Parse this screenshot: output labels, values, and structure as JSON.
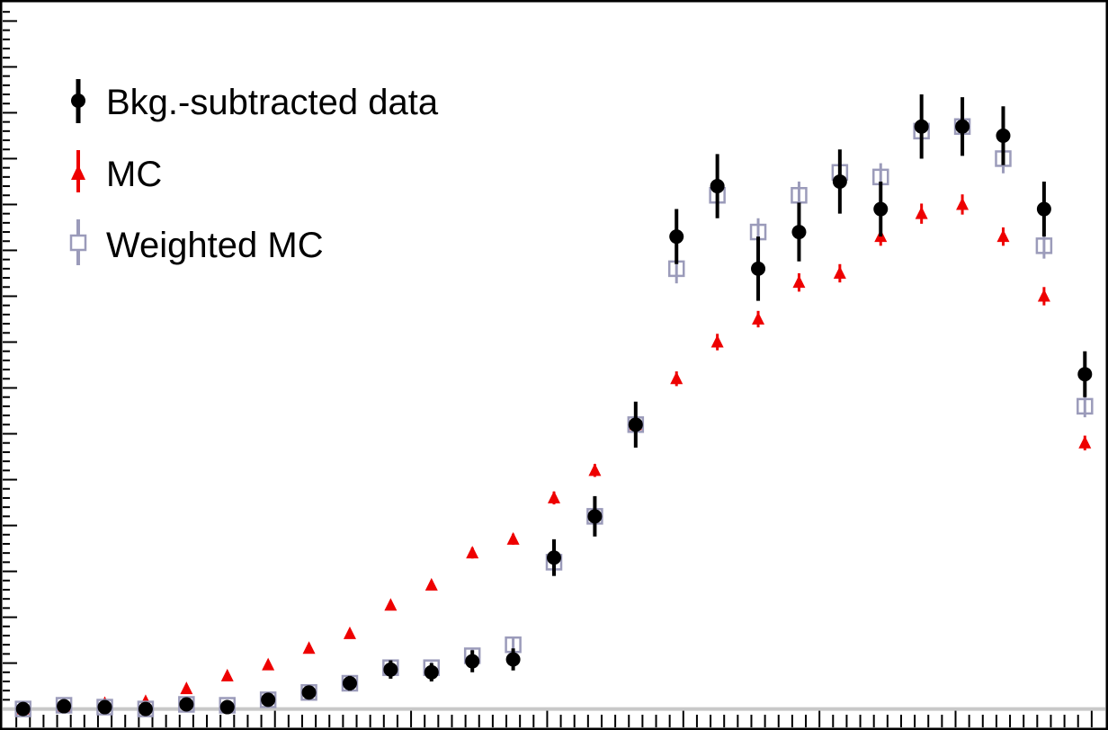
{
  "chart_data": {
    "type": "scatter",
    "title": "",
    "xlabel": "",
    "ylabel": "",
    "x": [
      1,
      2,
      3,
      4,
      5,
      6,
      7,
      8,
      9,
      10,
      11,
      12,
      13,
      14,
      15,
      16,
      17,
      18,
      19,
      20,
      21,
      22,
      23,
      24,
      25,
      26,
      27
    ],
    "xlim": [
      0.5,
      27.5
    ],
    "ylim": [
      -0.2,
      7.7
    ],
    "grid": false,
    "legend_position": "top-left",
    "series": [
      {
        "name": "Bkg.-subtracted data",
        "color": "#000000",
        "marker": "filled-circle",
        "values": [
          0.0,
          0.03,
          0.02,
          0.0,
          0.05,
          0.02,
          0.1,
          0.18,
          0.28,
          0.43,
          0.4,
          0.52,
          0.54,
          1.65,
          2.1,
          3.1,
          5.15,
          5.7,
          4.8,
          5.2,
          5.75,
          5.45,
          6.35,
          6.35,
          6.25,
          5.45,
          3.65
        ],
        "errors": [
          0.03,
          0.03,
          0.03,
          0.03,
          0.04,
          0.04,
          0.05,
          0.06,
          0.08,
          0.1,
          0.1,
          0.12,
          0.12,
          0.2,
          0.22,
          0.25,
          0.3,
          0.35,
          0.35,
          0.32,
          0.35,
          0.3,
          0.35,
          0.32,
          0.32,
          0.3,
          0.25
        ]
      },
      {
        "name": "MC",
        "color": "#ee0000",
        "marker": "filled-triangle",
        "values": [
          0.0,
          0.03,
          0.06,
          0.08,
          0.22,
          0.36,
          0.48,
          0.66,
          0.82,
          1.13,
          1.35,
          1.7,
          1.85,
          2.3,
          2.6,
          3.1,
          3.6,
          4.0,
          4.25,
          4.65,
          4.75,
          5.15,
          5.4,
          5.5,
          5.15,
          4.5,
          2.9
        ],
        "errors": [
          0.02,
          0.02,
          0.03,
          0.03,
          0.04,
          0.04,
          0.04,
          0.05,
          0.05,
          0.05,
          0.05,
          0.06,
          0.06,
          0.07,
          0.07,
          0.08,
          0.08,
          0.09,
          0.09,
          0.1,
          0.1,
          0.1,
          0.11,
          0.11,
          0.1,
          0.1,
          0.08
        ]
      },
      {
        "name": "Weighted MC",
        "color": "#9b9bba",
        "marker": "open-square",
        "values": [
          0.0,
          0.04,
          0.02,
          0.0,
          0.05,
          0.04,
          0.1,
          0.18,
          0.28,
          0.45,
          0.45,
          0.58,
          0.7,
          1.6,
          2.1,
          3.1,
          4.8,
          5.6,
          5.2,
          5.6,
          5.85,
          5.8,
          6.3,
          6.35,
          6.0,
          5.05,
          3.3
        ],
        "errors": [
          0.02,
          0.02,
          0.02,
          0.02,
          0.03,
          0.03,
          0.04,
          0.04,
          0.05,
          0.05,
          0.06,
          0.07,
          0.08,
          0.12,
          0.12,
          0.15,
          0.16,
          0.18,
          0.15,
          0.15,
          0.15,
          0.15,
          0.18,
          0.18,
          0.16,
          0.14,
          0.12
        ]
      }
    ]
  },
  "legend": {
    "entries": [
      "Bkg.-subtracted data",
      "MC",
      "Weighted MC"
    ]
  },
  "colors": {
    "baseline": "#c8c8c8",
    "axis": "#000000"
  }
}
